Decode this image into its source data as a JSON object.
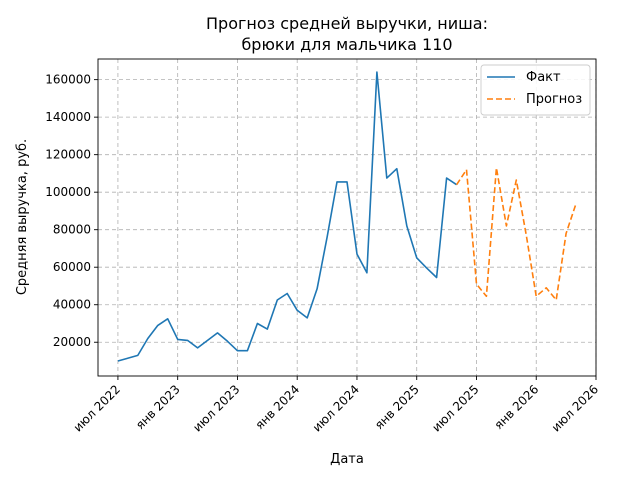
{
  "chart_data": {
    "type": "line",
    "title_lines": [
      "Прогноз средней выручки, ниша:",
      "брюки для мальчика 110"
    ],
    "xlabel": "Дата",
    "ylabel": "Средняя выручка, руб.",
    "x_ticks": [
      "2022-07",
      "2023-01",
      "2023-07",
      "2024-01",
      "2024-07",
      "2025-01",
      "2025-07",
      "2026-01",
      "2026-07"
    ],
    "x_tick_labels": [
      "июл 2022",
      "янв 2023",
      "июл 2023",
      "янв 2024",
      "июл 2024",
      "янв 2025",
      "июл 2025",
      "янв 2026",
      "июл 2026"
    ],
    "y_ticks": [
      20000,
      40000,
      60000,
      80000,
      100000,
      120000,
      140000,
      160000
    ],
    "y_tick_labels": [
      "20000",
      "40000",
      "60000",
      "80000",
      "100000",
      "120000",
      "140000",
      "160000"
    ],
    "xlim": [
      "2022-05",
      "2026-07"
    ],
    "ylim": [
      2000,
      171000
    ],
    "grid": true,
    "legend_position": "top-right",
    "series": [
      {
        "name": "Факт",
        "color": "#1f77b4",
        "style": "solid",
        "points": [
          [
            "2022-07",
            10000
          ],
          [
            "2022-09",
            13000
          ],
          [
            "2022-10",
            22000
          ],
          [
            "2022-11",
            29000
          ],
          [
            "2022-12",
            32500
          ],
          [
            "2023-01",
            21500
          ],
          [
            "2023-02",
            21000
          ],
          [
            "2023-03",
            17000
          ],
          [
            "2023-05",
            25000
          ],
          [
            "2023-06",
            20500
          ],
          [
            "2023-07",
            15500
          ],
          [
            "2023-08",
            15500
          ],
          [
            "2023-09",
            30000
          ],
          [
            "2023-10",
            27000
          ],
          [
            "2023-11",
            42500
          ],
          [
            "2023-12",
            46000
          ],
          [
            "2024-01",
            37000
          ],
          [
            "2024-02",
            33000
          ],
          [
            "2024-03",
            48500
          ],
          [
            "2024-04",
            76000
          ],
          [
            "2024-05",
            105500
          ],
          [
            "2024-06",
            105500
          ],
          [
            "2024-07",
            67000
          ],
          [
            "2024-08",
            57000
          ],
          [
            "2024-09",
            164000
          ],
          [
            "2024-10",
            107500
          ],
          [
            "2024-11",
            112500
          ],
          [
            "2024-12",
            82000
          ],
          [
            "2025-01",
            65000
          ],
          [
            "2025-02",
            59500
          ],
          [
            "2025-03",
            54500
          ],
          [
            "2025-04",
            107500
          ],
          [
            "2025-05",
            104000
          ]
        ]
      },
      {
        "name": "Прогноз",
        "color": "#ff7f0e",
        "style": "dashed",
        "points": [
          [
            "2025-05",
            104000
          ],
          [
            "2025-06",
            112000
          ],
          [
            "2025-07",
            51000
          ],
          [
            "2025-08",
            44500
          ],
          [
            "2025-09",
            113000
          ],
          [
            "2025-10",
            82000
          ],
          [
            "2025-11",
            106500
          ],
          [
            "2025-12",
            77000
          ],
          [
            "2026-01",
            44500
          ],
          [
            "2026-02",
            49000
          ],
          [
            "2026-03",
            42500
          ],
          [
            "2026-04",
            78000
          ],
          [
            "2026-05",
            94000
          ]
        ]
      }
    ]
  }
}
